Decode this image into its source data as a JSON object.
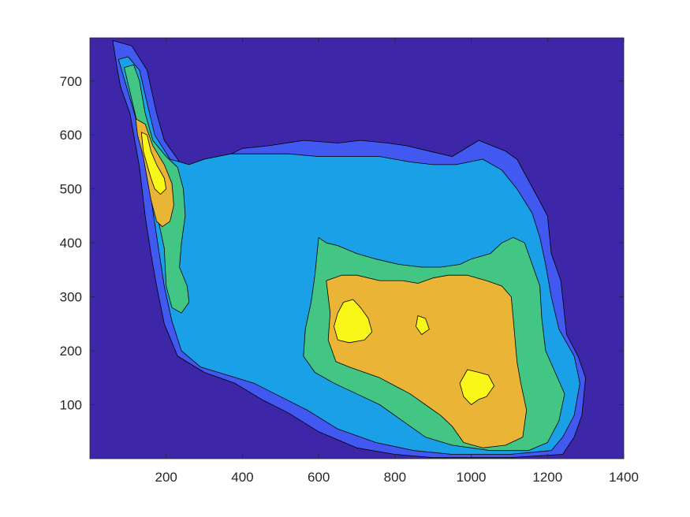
{
  "chart_data": {
    "type": "contourf",
    "title": "",
    "xlabel": "",
    "ylabel": "",
    "xlim": [
      0,
      1400
    ],
    "ylim": [
      0,
      780
    ],
    "x_ticks": [
      200,
      400,
      600,
      800,
      1000,
      1200,
      1400
    ],
    "y_ticks": [
      100,
      200,
      300,
      400,
      500,
      600,
      700
    ],
    "grid": false,
    "legend": "none",
    "colormap": "parula",
    "levels": [
      {
        "level": 0,
        "color": "#3d26a8"
      },
      {
        "level": 1,
        "color": "#4159f1"
      },
      {
        "level": 2,
        "color": "#1aa0e6"
      },
      {
        "level": 3,
        "color": "#43c583"
      },
      {
        "level": 4,
        "color": "#eab536"
      },
      {
        "level": 5,
        "color": "#f9f619"
      }
    ],
    "regions": [
      {
        "level": 1,
        "outline": [
          [
            60,
            775
          ],
          [
            110,
            765
          ],
          [
            150,
            720
          ],
          [
            175,
            640
          ],
          [
            195,
            590
          ],
          [
            240,
            545
          ],
          [
            300,
            540
          ],
          [
            400,
            575
          ],
          [
            470,
            580
          ],
          [
            560,
            590
          ],
          [
            650,
            585
          ],
          [
            710,
            590
          ],
          [
            780,
            585
          ],
          [
            830,
            580
          ],
          [
            890,
            570
          ],
          [
            950,
            560
          ],
          [
            1020,
            590
          ],
          [
            1090,
            570
          ],
          [
            1120,
            555
          ],
          [
            1170,
            490
          ],
          [
            1200,
            450
          ],
          [
            1210,
            380
          ],
          [
            1235,
            330
          ],
          [
            1250,
            230
          ],
          [
            1280,
            190
          ],
          [
            1300,
            150
          ],
          [
            1290,
            80
          ],
          [
            1270,
            40
          ],
          [
            1240,
            8
          ],
          [
            1100,
            2
          ],
          [
            900,
            2
          ],
          [
            800,
            8
          ],
          [
            700,
            20
          ],
          [
            600,
            50
          ],
          [
            520,
            85
          ],
          [
            450,
            110
          ],
          [
            380,
            140
          ],
          [
            300,
            160
          ],
          [
            230,
            190
          ],
          [
            195,
            250
          ],
          [
            175,
            320
          ],
          [
            160,
            380
          ],
          [
            145,
            450
          ],
          [
            130,
            540
          ],
          [
            105,
            640
          ],
          [
            80,
            690
          ],
          [
            70,
            730
          ]
        ]
      },
      {
        "level": 2,
        "outline": [
          [
            75,
            740
          ],
          [
            100,
            745
          ],
          [
            130,
            720
          ],
          [
            150,
            660
          ],
          [
            170,
            600
          ],
          [
            210,
            555
          ],
          [
            260,
            545
          ],
          [
            300,
            555
          ],
          [
            370,
            565
          ],
          [
            440,
            565
          ],
          [
            520,
            565
          ],
          [
            600,
            560
          ],
          [
            680,
            560
          ],
          [
            760,
            560
          ],
          [
            840,
            550
          ],
          [
            900,
            545
          ],
          [
            960,
            545
          ],
          [
            1030,
            555
          ],
          [
            1080,
            535
          ],
          [
            1120,
            500
          ],
          [
            1160,
            455
          ],
          [
            1180,
            410
          ],
          [
            1195,
            360
          ],
          [
            1210,
            300
          ],
          [
            1230,
            240
          ],
          [
            1270,
            190
          ],
          [
            1285,
            140
          ],
          [
            1270,
            80
          ],
          [
            1240,
            40
          ],
          [
            1210,
            15
          ],
          [
            1100,
            8
          ],
          [
            950,
            8
          ],
          [
            850,
            15
          ],
          [
            750,
            30
          ],
          [
            650,
            55
          ],
          [
            570,
            90
          ],
          [
            500,
            115
          ],
          [
            430,
            140
          ],
          [
            360,
            155
          ],
          [
            290,
            170
          ],
          [
            240,
            200
          ],
          [
            215,
            255
          ],
          [
            195,
            320
          ],
          [
            180,
            390
          ],
          [
            165,
            460
          ],
          [
            150,
            540
          ],
          [
            125,
            620
          ],
          [
            100,
            680
          ]
        ]
      },
      {
        "level": 3,
        "outline": [
          [
            90,
            725
          ],
          [
            115,
            730
          ],
          [
            130,
            700
          ],
          [
            145,
            640
          ],
          [
            165,
            590
          ],
          [
            200,
            560
          ],
          [
            230,
            540
          ],
          [
            245,
            500
          ],
          [
            250,
            450
          ],
          [
            240,
            400
          ],
          [
            235,
            355
          ],
          [
            255,
            320
          ],
          [
            260,
            290
          ],
          [
            240,
            270
          ],
          [
            215,
            280
          ],
          [
            200,
            320
          ],
          [
            195,
            390
          ],
          [
            180,
            440
          ],
          [
            160,
            500
          ],
          [
            145,
            560
          ],
          [
            125,
            620
          ],
          [
            105,
            680
          ]
        ]
      },
      {
        "level": 3,
        "outline": [
          [
            600,
            410
          ],
          [
            620,
            400
          ],
          [
            650,
            395
          ],
          [
            700,
            380
          ],
          [
            750,
            370
          ],
          [
            810,
            360
          ],
          [
            870,
            355
          ],
          [
            920,
            355
          ],
          [
            970,
            360
          ],
          [
            1000,
            370
          ],
          [
            1050,
            380
          ],
          [
            1080,
            400
          ],
          [
            1110,
            410
          ],
          [
            1140,
            400
          ],
          [
            1160,
            360
          ],
          [
            1180,
            320
          ],
          [
            1185,
            260
          ],
          [
            1195,
            200
          ],
          [
            1220,
            160
          ],
          [
            1245,
            120
          ],
          [
            1230,
            70
          ],
          [
            1200,
            30
          ],
          [
            1150,
            15
          ],
          [
            1050,
            15
          ],
          [
            950,
            25
          ],
          [
            880,
            40
          ],
          [
            820,
            70
          ],
          [
            760,
            100
          ],
          [
            700,
            120
          ],
          [
            640,
            140
          ],
          [
            590,
            160
          ],
          [
            560,
            190
          ],
          [
            565,
            240
          ],
          [
            580,
            290
          ],
          [
            590,
            340
          ]
        ]
      },
      {
        "level": 4,
        "outline": [
          [
            120,
            630
          ],
          [
            145,
            620
          ],
          [
            165,
            580
          ],
          [
            195,
            545
          ],
          [
            215,
            510
          ],
          [
            220,
            470
          ],
          [
            210,
            440
          ],
          [
            190,
            430
          ],
          [
            175,
            440
          ],
          [
            160,
            480
          ],
          [
            150,
            520
          ],
          [
            140,
            560
          ],
          [
            125,
            600
          ]
        ]
      },
      {
        "level": 4,
        "outline": [
          [
            620,
            330
          ],
          [
            660,
            340
          ],
          [
            700,
            340
          ],
          [
            760,
            330
          ],
          [
            820,
            330
          ],
          [
            860,
            325
          ],
          [
            900,
            335
          ],
          [
            940,
            340
          ],
          [
            990,
            340
          ],
          [
            1040,
            330
          ],
          [
            1080,
            320
          ],
          [
            1105,
            300
          ],
          [
            1110,
            260
          ],
          [
            1115,
            220
          ],
          [
            1120,
            180
          ],
          [
            1130,
            140
          ],
          [
            1145,
            90
          ],
          [
            1135,
            40
          ],
          [
            1090,
            25
          ],
          [
            1030,
            20
          ],
          [
            980,
            30
          ],
          [
            950,
            60
          ],
          [
            920,
            80
          ],
          [
            880,
            100
          ],
          [
            840,
            120
          ],
          [
            800,
            135
          ],
          [
            760,
            150
          ],
          [
            720,
            160
          ],
          [
            680,
            170
          ],
          [
            645,
            180
          ],
          [
            625,
            220
          ],
          [
            630,
            270
          ]
        ]
      },
      {
        "level": 5,
        "outline": [
          [
            135,
            605
          ],
          [
            150,
            600
          ],
          [
            160,
            570
          ],
          [
            175,
            545
          ],
          [
            195,
            520
          ],
          [
            200,
            500
          ],
          [
            185,
            490
          ],
          [
            170,
            500
          ],
          [
            160,
            520
          ],
          [
            150,
            545
          ],
          [
            140,
            570
          ]
        ]
      },
      {
        "level": 5,
        "outline": [
          [
            665,
            290
          ],
          [
            690,
            295
          ],
          [
            710,
            280
          ],
          [
            730,
            260
          ],
          [
            740,
            235
          ],
          [
            720,
            220
          ],
          [
            680,
            215
          ],
          [
            650,
            220
          ],
          [
            640,
            245
          ],
          [
            650,
            270
          ]
        ]
      },
      {
        "level": 5,
        "outline": [
          [
            860,
            265
          ],
          [
            880,
            260
          ],
          [
            890,
            240
          ],
          [
            870,
            230
          ],
          [
            855,
            245
          ]
        ]
      },
      {
        "level": 5,
        "outline": [
          [
            990,
            165
          ],
          [
            1020,
            160
          ],
          [
            1045,
            155
          ],
          [
            1060,
            135
          ],
          [
            1040,
            115
          ],
          [
            1020,
            110
          ],
          [
            1000,
            100
          ],
          [
            980,
            115
          ],
          [
            970,
            140
          ]
        ]
      }
    ]
  }
}
